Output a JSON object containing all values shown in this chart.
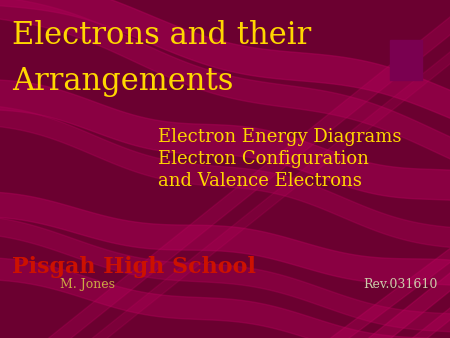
{
  "bg_color": "#6b0030",
  "title_line1": "Electrons and their",
  "title_line2": "Arrangements",
  "title_color": "#ffd700",
  "subtitle_line1": "Electron Energy Diagrams",
  "subtitle_line2": "Electron Configuration",
  "subtitle_line3": "and Valence Electrons",
  "subtitle_color": "#ffd700",
  "school_text": "Pisgah High School",
  "school_color": "#cc1100",
  "author_text": "M. Jones",
  "author_color": "#ccaa44",
  "rev_text": "Rev.031610",
  "rev_color": "#ccccaa",
  "title_fontsize": 22,
  "subtitle_fontsize": 13,
  "school_fontsize": 16,
  "author_fontsize": 9,
  "rev_fontsize": 9,
  "wave_color": "#aa0055",
  "accent_color": "#7a0050"
}
